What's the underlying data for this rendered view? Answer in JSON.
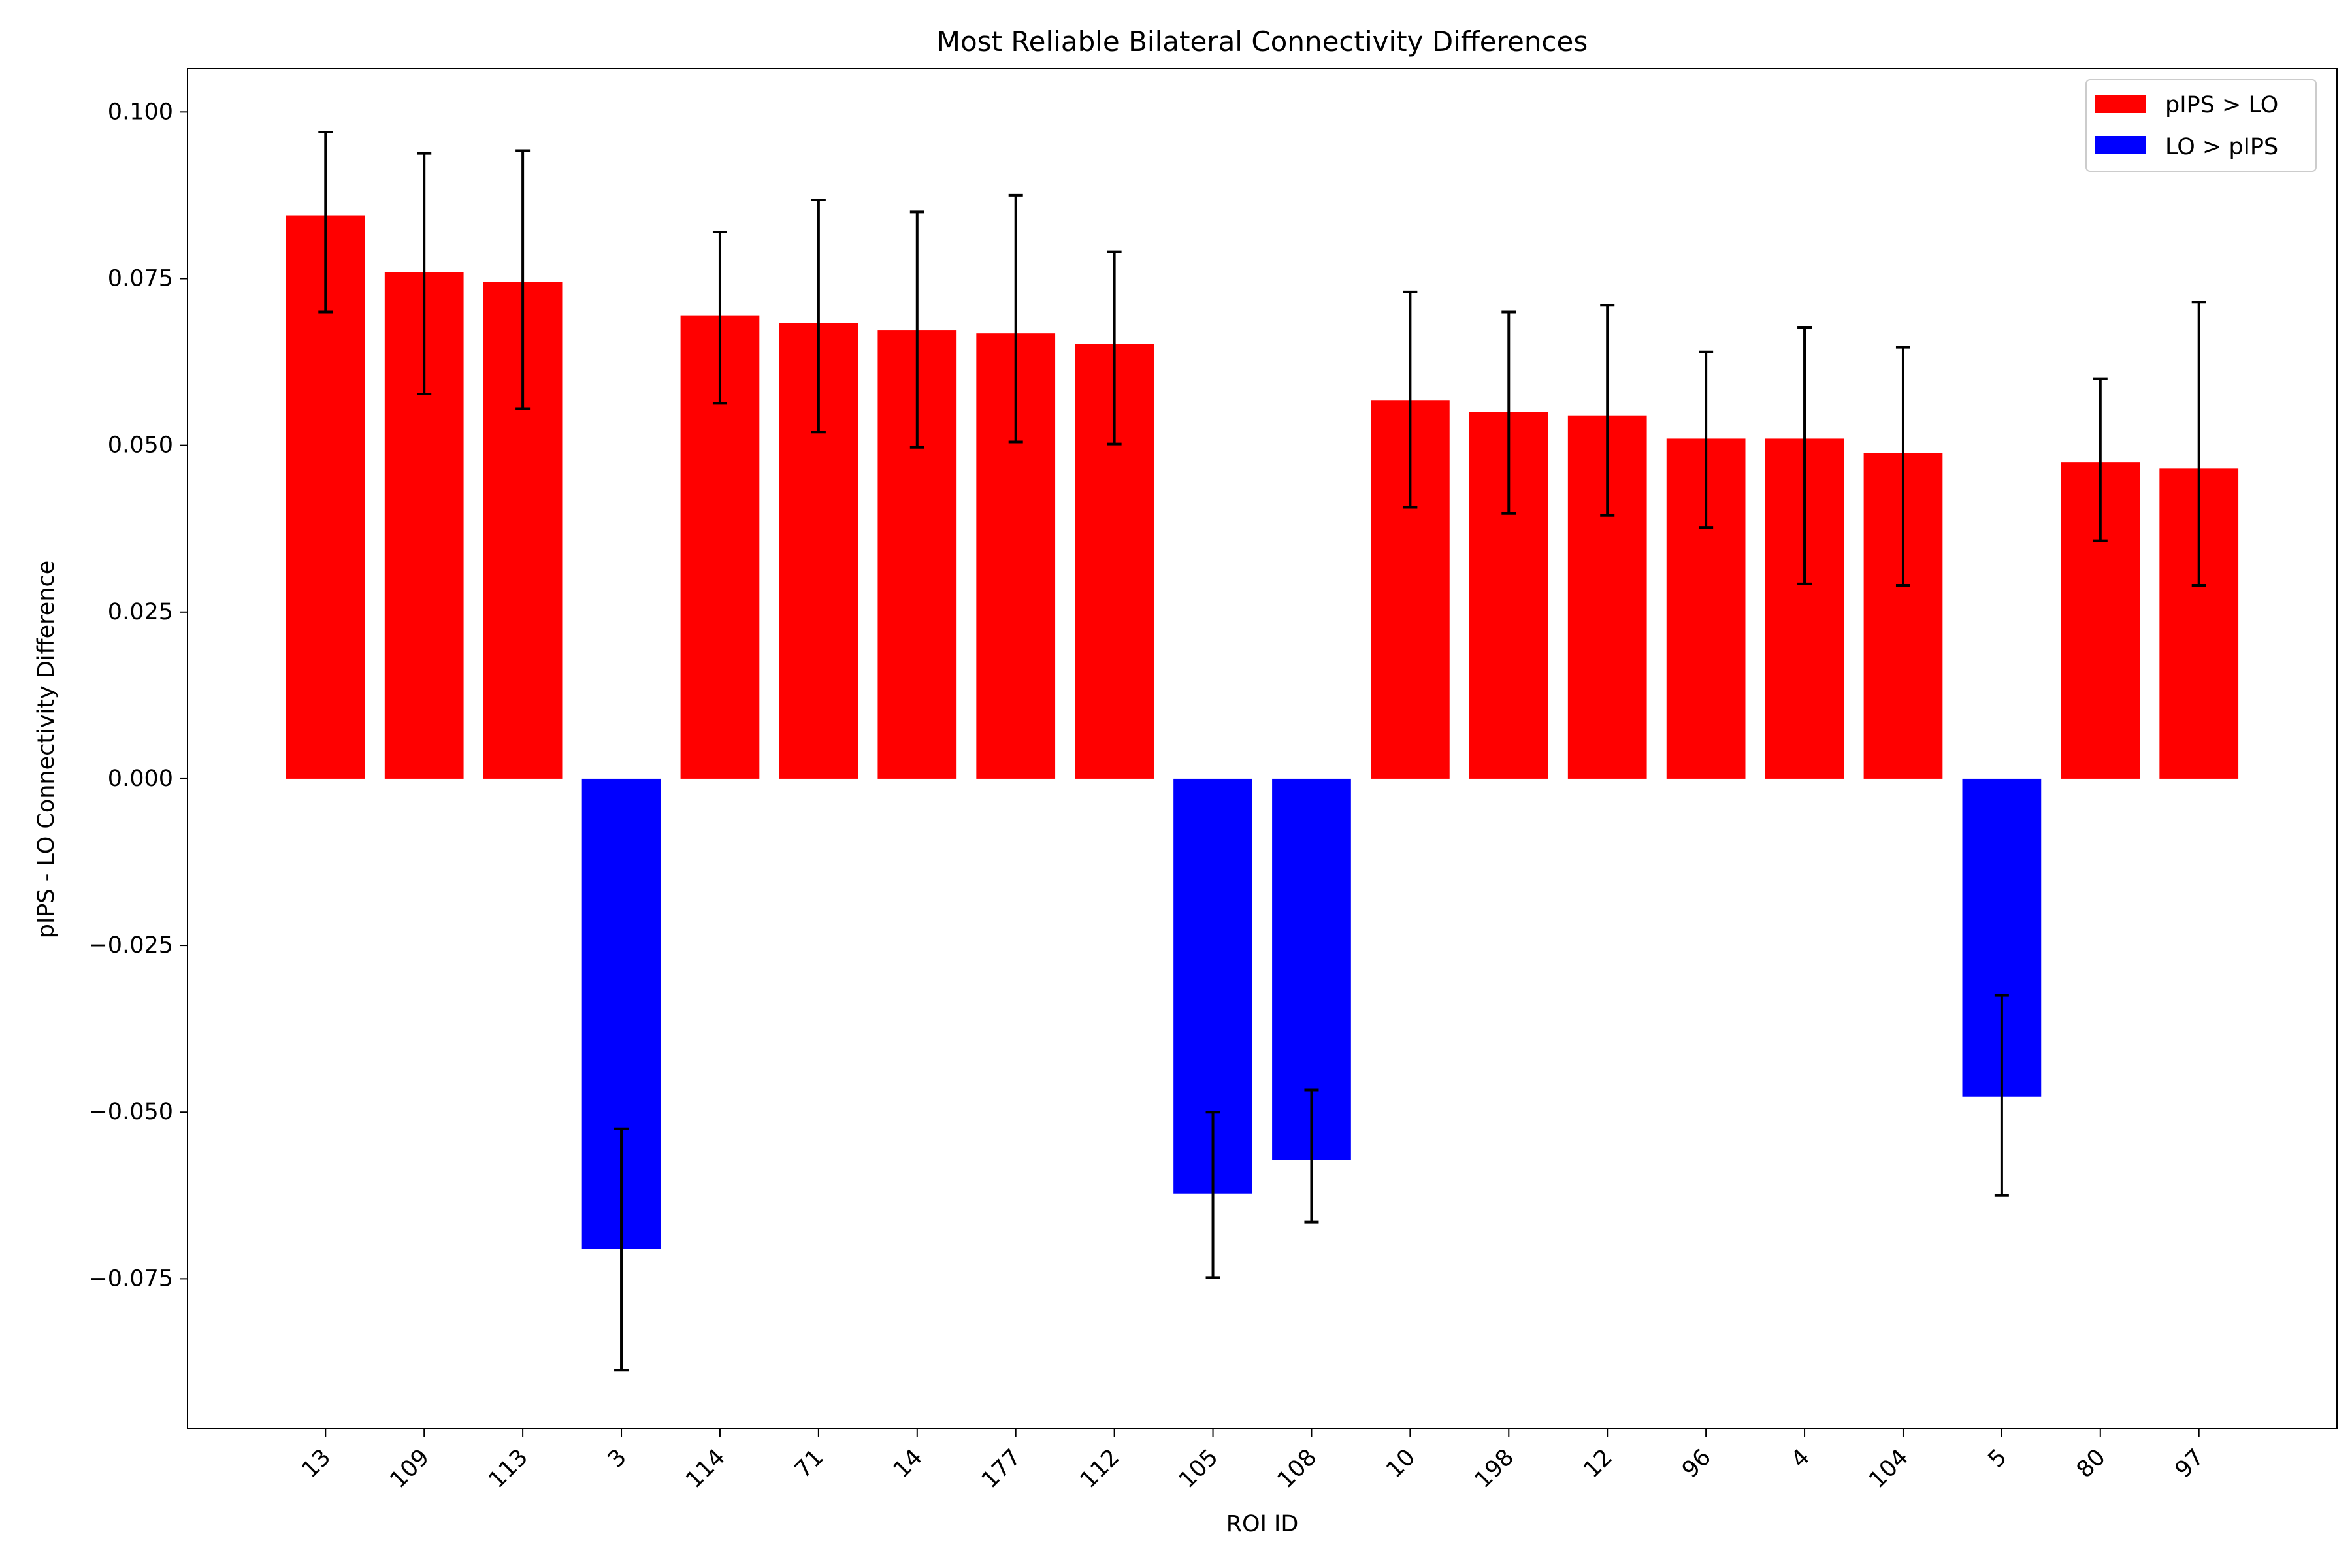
{
  "chart_data": {
    "type": "bar",
    "title": "Most Reliable Bilateral Connectivity Differences",
    "xlabel": "ROI ID",
    "ylabel": "pIPS - LO Connectivity Difference",
    "categories": [
      "13",
      "109",
      "113",
      "3",
      "114",
      "71",
      "14",
      "177",
      "112",
      "105",
      "108",
      "10",
      "198",
      "12",
      "96",
      "4",
      "104",
      "5",
      "80",
      "97"
    ],
    "values": [
      0.0845,
      0.076,
      0.0745,
      -0.0705,
      0.0695,
      0.0683,
      0.0673,
      0.0668,
      0.0652,
      -0.0622,
      -0.0572,
      0.0567,
      0.055,
      0.0545,
      0.051,
      0.051,
      0.0488,
      -0.0477,
      0.0475,
      0.0465
    ],
    "error_low": [
      0.07,
      0.0577,
      0.0555,
      -0.0887,
      0.0563,
      0.052,
      0.0497,
      0.0505,
      0.0502,
      -0.0748,
      -0.0665,
      0.0407,
      0.0398,
      0.0395,
      0.0377,
      0.0292,
      0.029,
      -0.0625,
      0.0357,
      0.029
    ],
    "error_high": [
      0.097,
      0.0938,
      0.0942,
      -0.0525,
      0.082,
      0.0868,
      0.085,
      0.0875,
      0.079,
      -0.05,
      -0.0467,
      0.073,
      0.07,
      0.071,
      0.064,
      0.0677,
      0.0647,
      -0.0325,
      0.06,
      0.0715
    ],
    "ylim": [
      -0.0975,
      0.1065
    ],
    "yticks": [
      "0.100",
      "0.075",
      "0.050",
      "0.025",
      "0.000",
      "−0.025",
      "−0.050",
      "−0.075"
    ],
    "ytick_values": [
      0.1,
      0.075,
      0.05,
      0.025,
      0.0,
      -0.025,
      -0.05,
      -0.075
    ],
    "legend": {
      "placement": "top-right",
      "entries": [
        {
          "label": "pIPS > LO",
          "color": "#ff0000"
        },
        {
          "label": "LO > pIPS",
          "color": "#0000ff"
        }
      ]
    },
    "colors": {
      "positive": "#ff0000",
      "negative": "#0000ff",
      "error_bar": "#000000"
    },
    "grid": false
  }
}
